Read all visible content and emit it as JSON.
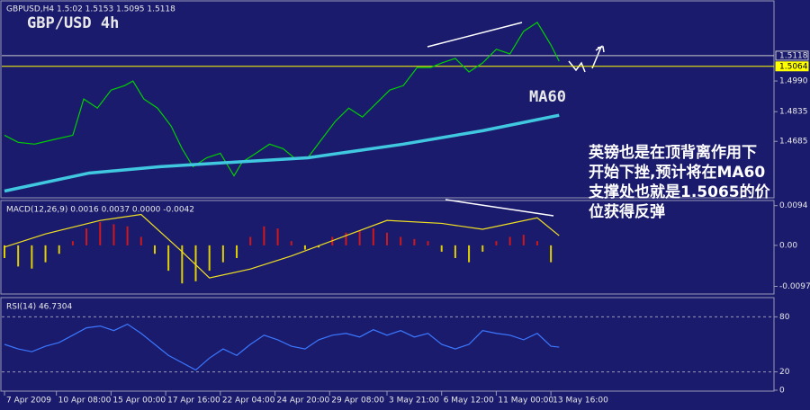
{
  "chart_data": [
    {
      "type": "line",
      "subtitle": "GBPUSD,H4  1.5:02 1.5153 1.5095 1.5118",
      "title": "GBP/USD 4h",
      "annotations": [
        "英镑也是在顶背离作用下",
        "开始下挫,预计将在MA60",
        "支撑处也就是1.5065的价",
        "位获得反弹"
      ],
      "xlim": [
        0,
        280
      ],
      "ylim": [
        1.44,
        1.539
      ],
      "yticks": [
        1.4685,
        1.4835,
        {
          "value": 1.499,
          "label": "1.4990"
        }
      ],
      "hlines": [
        {
          "value": 1.5118,
          "color": "#c8c8c8"
        },
        {
          "value": 1.5064,
          "color": "#ffff00"
        }
      ],
      "series": [
        {
          "color": "#00d000",
          "x": [
            0,
            5,
            11,
            18,
            25,
            29,
            34,
            39,
            44,
            47,
            51,
            56,
            61,
            65,
            69,
            74,
            79,
            84,
            87,
            92,
            97,
            102,
            106,
            111,
            116,
            121,
            126,
            131,
            136,
            141,
            146,
            151,
            156,
            160,
            165,
            170,
            175,
            180,
            185,
            190,
            195,
            200,
            203
          ],
          "values": [
            1.4716,
            1.468,
            1.4671,
            1.4694,
            1.4716,
            1.4899,
            1.4853,
            1.4944,
            1.4967,
            1.499,
            1.4899,
            1.4853,
            1.4762,
            1.4648,
            1.4557,
            1.4602,
            1.4625,
            1.4511,
            1.458,
            1.4625,
            1.4671,
            1.4648,
            1.4602,
            1.4602,
            1.4694,
            1.4785,
            1.4853,
            1.4808,
            1.4876,
            1.4944,
            1.4967,
            1.5058,
            1.5058,
            1.5081,
            1.5104,
            1.5036,
            1.5081,
            1.515,
            1.5127,
            1.5241,
            1.5286,
            1.5172,
            1.509
          ]
        },
        {
          "name": "MA60",
          "color": "#40c8e0",
          "x": [
            0,
            31,
            57,
            84,
            111,
            146,
            175,
            203
          ],
          "values": [
            1.4434,
            1.4525,
            1.4557,
            1.458,
            1.4602,
            1.4671,
            1.4739,
            1.4817
          ]
        }
      ]
    },
    {
      "type": "bar",
      "title": "MACD(12,26,9) 0.0016 0.0037 0.0000 -0.0042",
      "xlim": [
        0,
        280
      ],
      "ylim": [
        -0.0113,
        0.0104
      ],
      "yticks": [
        0.0094,
        {
          "value": 0,
          "label": "0.00"
        },
        -0.0097
      ],
      "positive_color": "#d01818",
      "negative_color": "#e0d000",
      "x": [
        0,
        5,
        10,
        15,
        20,
        25,
        30,
        35,
        40,
        45,
        50,
        55,
        60,
        65,
        70,
        75,
        80,
        85,
        90,
        95,
        100,
        105,
        110,
        115,
        120,
        125,
        130,
        135,
        140,
        145,
        150,
        155,
        160,
        165,
        170,
        175,
        180,
        185,
        190,
        195,
        200
      ],
      "values": [
        -0.003,
        -0.005,
        -0.0055,
        -0.004,
        -0.002,
        0.001,
        0.004,
        0.0055,
        0.005,
        0.0045,
        0.002,
        -0.002,
        -0.006,
        -0.009,
        -0.0085,
        -0.006,
        -0.004,
        -0.003,
        0.002,
        0.0045,
        0.004,
        0.001,
        -0.001,
        -0.0005,
        0.002,
        0.003,
        0.0035,
        0.004,
        0.003,
        0.002,
        0.0015,
        0.001,
        -0.0015,
        -0.003,
        -0.004,
        -0.0015,
        0.001,
        0.002,
        0.0025,
        0.001,
        -0.004
      ],
      "series": [
        {
          "color": "#f0e020",
          "x": [
            0,
            15,
            35,
            50,
            65,
            75,
            90,
            105,
            125,
            140,
            160,
            175,
            195,
            203
          ],
          "values": [
            -0.0004,
            0.0027,
            0.0059,
            0.0073,
            -0.0015,
            -0.0077,
            -0.0056,
            -0.0025,
            0.0023,
            0.0059,
            0.0052,
            0.0038,
            0.0065,
            0.0023
          ]
        }
      ]
    },
    {
      "type": "line",
      "title": "RSI(14) 46.7304",
      "xlim": [
        0,
        280
      ],
      "ylim": [
        0,
        100
      ],
      "yticks": [
        80,
        20,
        0
      ],
      "levels": [
        80,
        20
      ],
      "xticks": [
        {
          "value": 0,
          "label": "7 Apr 2009"
        },
        {
          "value": 19,
          "label": "10 Apr 08:00"
        },
        {
          "value": 39,
          "label": "15 Apr 00:00"
        },
        {
          "value": 59,
          "label": "17 Apr 16:00"
        },
        {
          "value": 79,
          "label": "22 Apr 04:00"
        },
        {
          "value": 99,
          "label": "24 Apr 20:00"
        },
        {
          "value": 119,
          "label": "29 Apr 08:00"
        },
        {
          "value": 140,
          "label": "3 May 21:00"
        },
        {
          "value": 160,
          "label": "6 May 12:00"
        },
        {
          "value": 180,
          "label": "11 May 00:00"
        },
        {
          "value": 200,
          "label": "13 May 16:00"
        }
      ],
      "series": [
        {
          "color": "#3a78ff",
          "x": [
            0,
            5,
            10,
            15,
            20,
            25,
            30,
            35,
            40,
            45,
            50,
            55,
            60,
            65,
            70,
            75,
            80,
            85,
            90,
            95,
            100,
            105,
            110,
            115,
            120,
            125,
            130,
            135,
            140,
            145,
            150,
            155,
            160,
            165,
            170,
            175,
            180,
            185,
            190,
            195,
            200,
            203
          ],
          "values": [
            50,
            45,
            42,
            48,
            52,
            60,
            68,
            70,
            65,
            72,
            62,
            50,
            38,
            30,
            22,
            35,
            45,
            38,
            50,
            60,
            55,
            48,
            45,
            55,
            60,
            62,
            58,
            66,
            60,
            65,
            58,
            62,
            50,
            45,
            50,
            65,
            62,
            60,
            55,
            62,
            48,
            47
          ]
        }
      ]
    }
  ]
}
